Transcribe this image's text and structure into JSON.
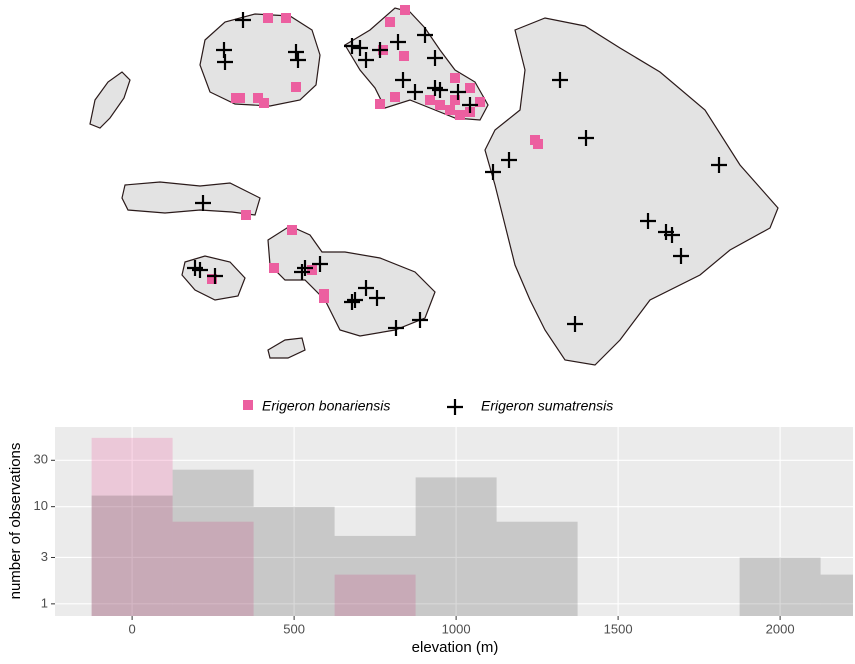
{
  "chart_data": {
    "type": "histogram",
    "log_y": true,
    "xlabel": "elevation (m)",
    "ylabel": "number of observations",
    "bins": [
      -125,
      125,
      375,
      625,
      875,
      1125,
      1375,
      1625,
      1875,
      2125,
      2375
    ],
    "series": [
      {
        "name": "Erigeron bonariensis",
        "color": "#ec5fa0",
        "values": [
          51,
          7,
          0,
          2,
          0,
          0,
          0,
          0,
          0,
          0
        ]
      },
      {
        "name": "Erigeron sumatrensis",
        "color": "#000000",
        "values": [
          13,
          24,
          10,
          5,
          20,
          7,
          0,
          0,
          3,
          2
        ]
      }
    ],
    "xlim": [
      -238,
      2225
    ],
    "xticks": [
      0,
      500,
      1000,
      1500,
      2000
    ],
    "ylim": [
      0.75,
      66
    ],
    "yticks": [
      1,
      3,
      10,
      30
    ],
    "grid": true,
    "legend": "top"
  }
}
